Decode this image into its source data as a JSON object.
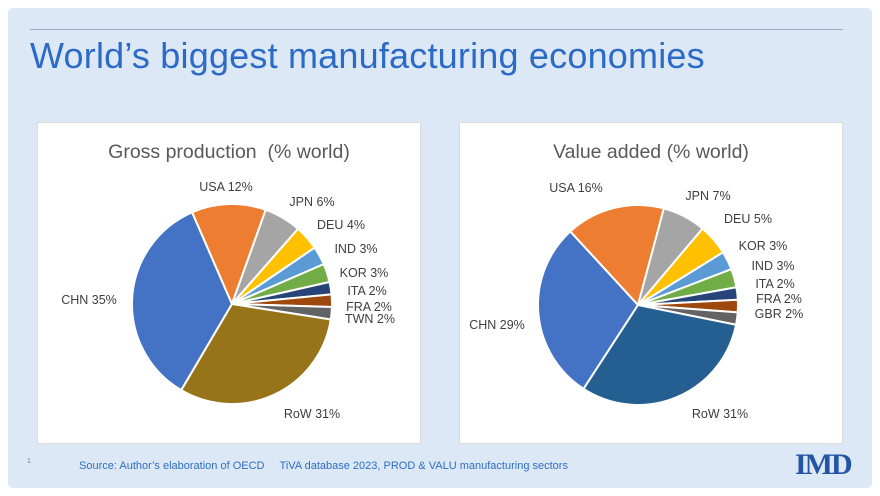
{
  "slide": {
    "title": "World’s biggest manufacturing economies",
    "page_number": "1",
    "source_note": "Source: Author’s elaboration of OECD     TiVA database 2023, PROD & VALU manufacturing sectors",
    "logo_text": "IMD",
    "colors": {
      "background": "#DCE8F5",
      "title_blue": "#2B6BC7",
      "rule": "#96AFCE",
      "chart_title_gray": "#595959",
      "label_gray": "#3E3E3E",
      "source_blue": "#2E6EC6",
      "logo_blue": "#2355A4"
    }
  },
  "chart_data": [
    {
      "type": "pie",
      "title": "Gross production  (% world)",
      "legend": "none",
      "grid": "off",
      "start_angle": 210.5,
      "center": [
        194,
        181
      ],
      "radius": 100,
      "slices": [
        {
          "code": "CHN",
          "label": "CHN 35%",
          "value": 35,
          "color": "#4472C4",
          "label_pos": [
            51,
            177
          ]
        },
        {
          "code": "USA",
          "label": "USA 12%",
          "value": 12,
          "color": "#ED7D31",
          "label_pos": [
            188,
            64
          ]
        },
        {
          "code": "JPN",
          "label": "JPN 6%",
          "value": 6,
          "color": "#A5A5A5",
          "label_pos": [
            274,
            79
          ]
        },
        {
          "code": "DEU",
          "label": "DEU 4%",
          "value": 4,
          "color": "#FFC000",
          "label_pos": [
            303,
            102
          ]
        },
        {
          "code": "IND",
          "label": "IND 3%",
          "value": 3,
          "color": "#5B9BD5",
          "label_pos": [
            318,
            126
          ]
        },
        {
          "code": "KOR",
          "label": "KOR 3%",
          "value": 3,
          "color": "#70AD47",
          "label_pos": [
            326,
            150
          ]
        },
        {
          "code": "ITA",
          "label": "ITA 2%",
          "value": 2,
          "color": "#264478",
          "label_pos": [
            329,
            168
          ]
        },
        {
          "code": "FRA",
          "label": "FRA 2%",
          "value": 2,
          "color": "#9E480E",
          "label_pos": [
            331,
            184
          ]
        },
        {
          "code": "TWN",
          "label": "TWN 2%",
          "value": 2,
          "color": "#636363",
          "label_pos": [
            332,
            196
          ]
        },
        {
          "code": "RoW",
          "label": "RoW 31%",
          "value": 31,
          "color": "#97741A",
          "label_pos": [
            274,
            291
          ]
        }
      ]
    },
    {
      "type": "pie",
      "title": "Value added (% world)",
      "legend": "none",
      "grid": "off",
      "start_angle": 213,
      "center": [
        178,
        182
      ],
      "radius": 100,
      "slices": [
        {
          "code": "CHN",
          "label": "CHN 29%",
          "value": 29,
          "color": "#4472C4",
          "label_pos": [
            37,
            202
          ]
        },
        {
          "code": "USA",
          "label": "USA 16%",
          "value": 16,
          "color": "#ED7D31",
          "label_pos": [
            116,
            65
          ]
        },
        {
          "code": "JPN",
          "label": "JPN 7%",
          "value": 7,
          "color": "#A5A5A5",
          "label_pos": [
            248,
            73
          ]
        },
        {
          "code": "DEU",
          "label": "DEU 5%",
          "value": 5,
          "color": "#FFC000",
          "label_pos": [
            288,
            96
          ]
        },
        {
          "code": "KOR",
          "label": "KOR 3%",
          "value": 3,
          "color": "#5B9BD5",
          "label_pos": [
            303,
            123
          ]
        },
        {
          "code": "IND",
          "label": "IND 3%",
          "value": 3,
          "color": "#70AD47",
          "label_pos": [
            313,
            143
          ]
        },
        {
          "code": "ITA",
          "label": "ITA 2%",
          "value": 2,
          "color": "#264478",
          "label_pos": [
            315,
            161
          ]
        },
        {
          "code": "FRA",
          "label": "FRA 2%",
          "value": 2,
          "color": "#9E480E",
          "label_pos": [
            319,
            176
          ]
        },
        {
          "code": "GBR",
          "label": "GBR 2%",
          "value": 2,
          "color": "#636363",
          "label_pos": [
            319,
            191
          ]
        },
        {
          "code": "RoW",
          "label": "RoW 31%",
          "value": 31,
          "color": "#255E91",
          "label_pos": [
            260,
            291
          ]
        }
      ]
    }
  ]
}
